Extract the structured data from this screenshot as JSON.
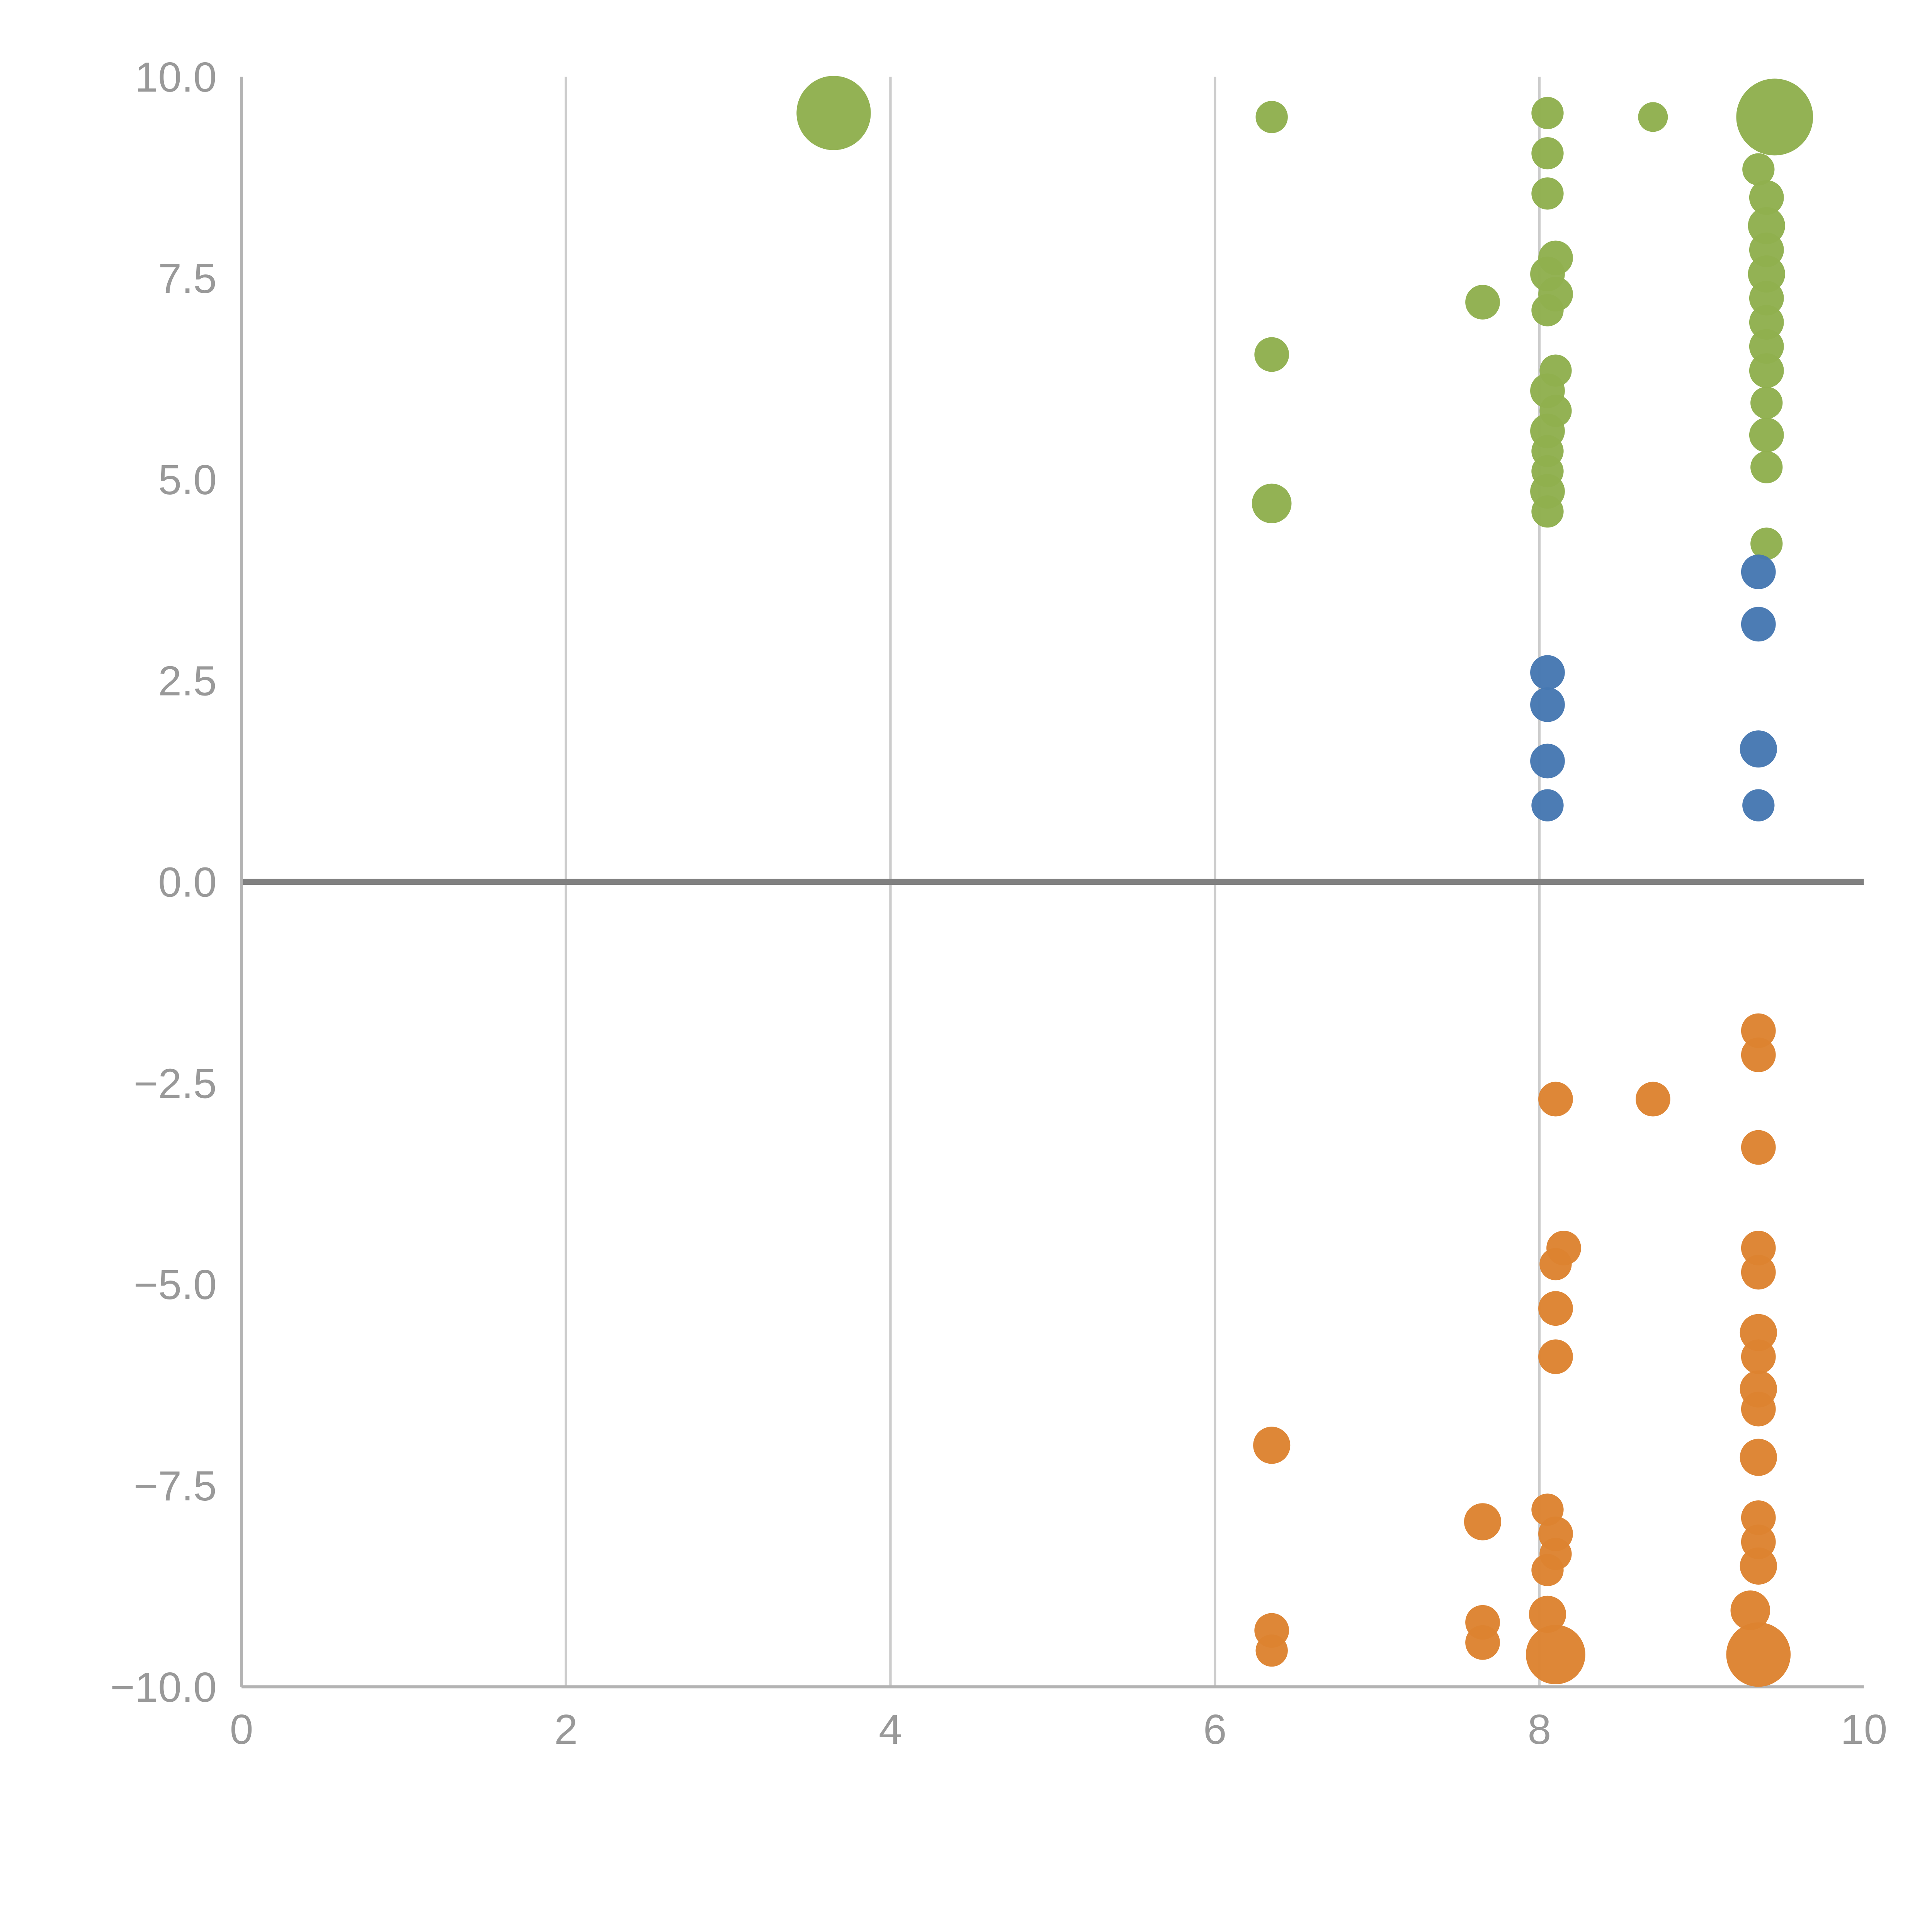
{
  "page": {
    "background": "#ffffff"
  },
  "chart_data": {
    "type": "scatter",
    "title": "",
    "subtitle": "",
    "xlabel": "",
    "ylabel": "",
    "xlim": [
      0,
      10
    ],
    "ylim": [
      -10,
      10
    ],
    "x_ticks": [
      0,
      2,
      4,
      6,
      8,
      10
    ],
    "x_tick_labels": [
      "0",
      "2",
      "4",
      "6",
      "8",
      "10"
    ],
    "y_ticks": [
      -10,
      -7.5,
      -5,
      -2.5,
      0,
      2.5,
      5,
      7.5,
      10
    ],
    "y_tick_labels": [
      "−10.0",
      "−7.5",
      "−5.0",
      "−2.5",
      "0.0",
      "2.5",
      "5.0",
      "7.5",
      "10.0"
    ],
    "legend": "none",
    "grid": {
      "vertical_gridlines_at": [
        2,
        4,
        6,
        8
      ],
      "zero_line": true
    },
    "colors": {
      "grid": "#cccccc",
      "spine": "#b3b3b3",
      "zero_line": "#808080",
      "tick_label": "#999999"
    },
    "series": [
      {
        "name": "green",
        "color": "#8faf4e",
        "points": [
          [
            3.65,
            9.55,
            30
          ],
          [
            6.35,
            9.5,
            13
          ],
          [
            6.35,
            6.55,
            14
          ],
          [
            6.35,
            4.7,
            16
          ],
          [
            7.65,
            7.2,
            14
          ],
          [
            8.05,
            9.55,
            13
          ],
          [
            8.05,
            9.05,
            13
          ],
          [
            8.05,
            8.55,
            13
          ],
          [
            8.1,
            7.75,
            14
          ],
          [
            8.05,
            7.55,
            14
          ],
          [
            8.1,
            7.3,
            14
          ],
          [
            8.05,
            7.1,
            13
          ],
          [
            8.1,
            6.35,
            13
          ],
          [
            8.05,
            6.1,
            14
          ],
          [
            8.1,
            5.85,
            13
          ],
          [
            8.05,
            5.6,
            14
          ],
          [
            8.05,
            5.35,
            13
          ],
          [
            8.05,
            5.1,
            13
          ],
          [
            8.05,
            4.85,
            14
          ],
          [
            8.05,
            4.6,
            13
          ],
          [
            8.7,
            9.5,
            12
          ],
          [
            9.45,
            9.5,
            31
          ],
          [
            9.35,
            8.85,
            13
          ],
          [
            9.4,
            8.5,
            14
          ],
          [
            9.4,
            8.15,
            15
          ],
          [
            9.4,
            7.85,
            14
          ],
          [
            9.4,
            7.55,
            15
          ],
          [
            9.4,
            7.25,
            14
          ],
          [
            9.4,
            6.95,
            14
          ],
          [
            9.4,
            6.65,
            14
          ],
          [
            9.4,
            6.35,
            14
          ],
          [
            9.4,
            5.95,
            13
          ],
          [
            9.4,
            5.55,
            14
          ],
          [
            9.4,
            5.15,
            13
          ],
          [
            9.4,
            4.2,
            13
          ]
        ]
      },
      {
        "name": "blue",
        "color": "#4678b2",
        "points": [
          [
            8.05,
            2.6,
            14
          ],
          [
            8.05,
            2.2,
            14
          ],
          [
            8.05,
            1.5,
            14
          ],
          [
            8.05,
            0.95,
            13
          ],
          [
            9.35,
            3.85,
            14
          ],
          [
            9.35,
            3.2,
            14
          ],
          [
            9.35,
            1.65,
            15
          ],
          [
            9.35,
            0.95,
            13
          ]
        ]
      },
      {
        "name": "orange",
        "color": "#dd8331",
        "points": [
          [
            6.35,
            -7.0,
            15
          ],
          [
            6.35,
            -9.3,
            14
          ],
          [
            6.35,
            -9.55,
            13
          ],
          [
            7.65,
            -7.95,
            15
          ],
          [
            7.65,
            -9.2,
            14
          ],
          [
            7.65,
            -9.45,
            14
          ],
          [
            8.1,
            -2.7,
            14
          ],
          [
            8.15,
            -4.55,
            14
          ],
          [
            8.1,
            -4.75,
            13
          ],
          [
            8.1,
            -5.3,
            14
          ],
          [
            8.1,
            -5.9,
            14
          ],
          [
            8.05,
            -7.8,
            13
          ],
          [
            8.1,
            -8.1,
            14
          ],
          [
            8.1,
            -8.35,
            13
          ],
          [
            8.05,
            -8.55,
            13
          ],
          [
            8.05,
            -9.1,
            15
          ],
          [
            8.1,
            -9.6,
            24
          ],
          [
            8.7,
            -2.7,
            14
          ],
          [
            9.35,
            -1.85,
            14
          ],
          [
            9.35,
            -2.15,
            14
          ],
          [
            9.35,
            -3.3,
            14
          ],
          [
            9.35,
            -4.55,
            14
          ],
          [
            9.35,
            -4.85,
            14
          ],
          [
            9.35,
            -5.6,
            15
          ],
          [
            9.35,
            -5.9,
            14
          ],
          [
            9.35,
            -6.3,
            15
          ],
          [
            9.35,
            -6.55,
            14
          ],
          [
            9.35,
            -7.15,
            15
          ],
          [
            9.35,
            -7.9,
            14
          ],
          [
            9.35,
            -8.2,
            14
          ],
          [
            9.35,
            -8.5,
            15
          ],
          [
            9.3,
            -9.05,
            16
          ],
          [
            9.35,
            -9.6,
            26
          ]
        ]
      }
    ]
  }
}
